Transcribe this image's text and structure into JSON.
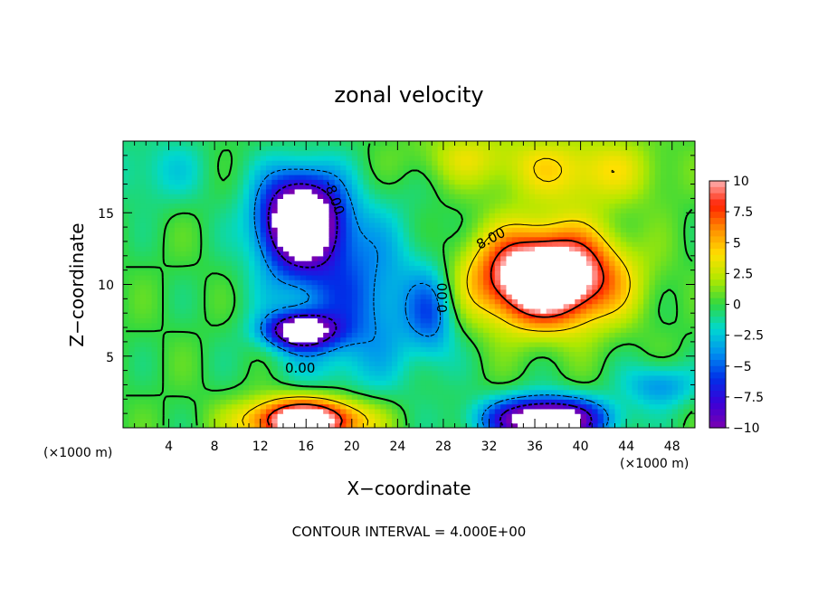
{
  "chart_data": {
    "type": "heatmap",
    "title": "zonal velocity",
    "xlabel": "X−coordinate",
    "ylabel": "Z−coordinate",
    "x_unit_left": "(×1000 m)",
    "x_unit_right": "(×1000 m)",
    "xlim": [
      0,
      50
    ],
    "ylim": [
      0,
      20
    ],
    "x_ticks": [
      "4",
      "8",
      "12",
      "16",
      "20",
      "24",
      "28",
      "32",
      "36",
      "40",
      "44",
      "48"
    ],
    "y_ticks": [
      "5",
      "10",
      "15"
    ],
    "footer": "CONTOUR INTERVAL = 4.000E+00",
    "contour_labels": [
      "0.00",
      "0.00",
      "8.00",
      "-8.00"
    ],
    "colorbar": {
      "ticks": [
        "10",
        "7.5",
        "5",
        "2.5",
        "0",
        "−2.5",
        "−5",
        "−7.5",
        "−10"
      ],
      "min": -10,
      "max": 10
    },
    "colors": {
      "c_m10": "#7a00b0",
      "c_m8": "#3a00d8",
      "c_m6": "#0030e8",
      "c_m4": "#0090f0",
      "c_m2": "#00d8d0",
      "c_0": "#30d840",
      "c_2": "#b0e800",
      "c_4": "#ffe000",
      "c_6": "#ff9000",
      "c_8": "#ff2000",
      "c_10": "#ffb0b0"
    },
    "features": [
      {
        "name": "blob-negative-upper-left",
        "x": 15.5,
        "z": 14.5,
        "amp": -15,
        "sx": 3.5,
        "sz": 3.2
      },
      {
        "name": "blob-negative-small",
        "x": 15.5,
        "z": 6.8,
        "amp": -11,
        "sx": 3.0,
        "sz": 1.2
      },
      {
        "name": "blob-positive-right",
        "x": 37,
        "z": 10.5,
        "amp": 16,
        "sx": 6.0,
        "sz": 3.2
      },
      {
        "name": "blob-positive-bottom-left",
        "x": 16,
        "z": 0.5,
        "amp": 14,
        "sx": 5.0,
        "sz": 1.6
      },
      {
        "name": "blob-negative-bottom-right",
        "x": 37,
        "z": 0.6,
        "amp": -14,
        "sx": 5.0,
        "sz": 1.5
      },
      {
        "name": "band-negative-mid",
        "x": 20,
        "z": 9,
        "amp": -5,
        "sx": 6.5,
        "sz": 6.0
      },
      {
        "name": "blob-negative-column",
        "x": 27,
        "z": 8,
        "amp": -4,
        "sx": 2.0,
        "sz": 3.0
      },
      {
        "name": "blob-positive-top-right",
        "x": 40,
        "z": 18,
        "amp": 4,
        "sx": 7.0,
        "sz": 2.5
      },
      {
        "name": "blob-positive-top-middle",
        "x": 30,
        "z": 19,
        "amp": 2.5,
        "sx": 5.0,
        "sz": 2.0
      },
      {
        "name": "blob-negative-top-left",
        "x": 3,
        "z": 18,
        "amp": -2,
        "sx": 5.0,
        "sz": 2.5
      },
      {
        "name": "blob-negative-right-edge",
        "x": 47,
        "z": 3,
        "amp": -4,
        "sx": 3.0,
        "sz": 1.5
      }
    ]
  }
}
